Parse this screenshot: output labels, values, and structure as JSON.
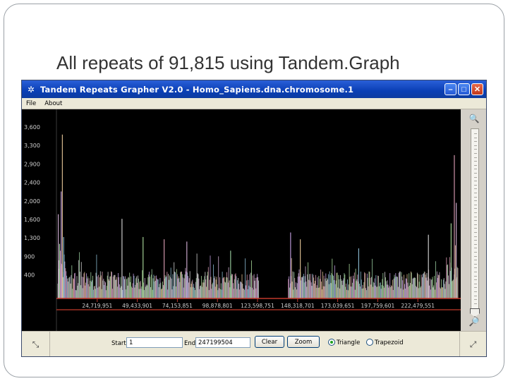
{
  "slide": {
    "title": "All repeats of 91,815 using Tandem.Graph"
  },
  "window": {
    "title": "Tandem Repeats Grapher V2.0 - Homo_Sapiens.dna.chromosome.1",
    "buttons": {
      "minimize": "–",
      "maximize": "□",
      "close": "✕"
    }
  },
  "menu": {
    "items": [
      "File",
      "About"
    ]
  },
  "icons": {
    "app": "star-icon",
    "zoom_in": "zoom-in-icon",
    "zoom_out": "zoom-out-icon",
    "left_tool": "resize-left-icon",
    "right_tool": "resize-right-icon"
  },
  "controls": {
    "start_label": "Start",
    "start_value": "1",
    "end_label": "End",
    "end_value": "247199504",
    "clear_label": "Clear",
    "zoom_label": "Zoom",
    "triangle_label": "Triangle",
    "trapezoid_label": "Trapezoid",
    "selected_shape": "Triangle"
  },
  "colors": {
    "plot_bg": "#000000",
    "axis": "#c0392b",
    "tick_labels": "#cfcfcf",
    "titlebar": "#0a3fb5"
  },
  "chart_data": {
    "type": "bar",
    "title": "",
    "xlabel": "",
    "ylabel": "",
    "y_ticks": [
      "3,600",
      "3,300",
      "2,900",
      "2,400",
      "2,000",
      "1,600",
      "1,300",
      "900",
      "400"
    ],
    "x_ticks": [
      24719951,
      49433901,
      74153851,
      98878801,
      123598751,
      148318701,
      173039651,
      197759601,
      222479551
    ],
    "x_tick_labels": [
      "24,719,951",
      "49,433,901",
      "74,153,851",
      "98,878,801",
      "123,598,751",
      "148,318,701",
      "173,039,651",
      "197,759,601",
      "222,479,551"
    ],
    "ylim": [
      0,
      4000
    ],
    "xlim": [
      1,
      247199504
    ],
    "gap": [
      124500000,
      142600000
    ],
    "series_colors": [
      "#d7b3d9",
      "#9fd3a4",
      "#c9a3e8",
      "#e8c89a",
      "#8fc0d8",
      "#d9d9d9",
      "#b0e0a0",
      "#e0a0b8"
    ],
    "peaks": [
      {
        "x": 700000,
        "y": 1850
      },
      {
        "x": 1500000,
        "y": 1200
      },
      {
        "x": 2500000,
        "y": 2350
      },
      {
        "x": 3200000,
        "y": 3600
      },
      {
        "x": 4000000,
        "y": 1350
      },
      {
        "x": 40000000,
        "y": 1750
      },
      {
        "x": 53000000,
        "y": 1350
      },
      {
        "x": 66000000,
        "y": 1300
      },
      {
        "x": 80000000,
        "y": 1250
      },
      {
        "x": 107000000,
        "y": 1050
      },
      {
        "x": 144000000,
        "y": 1450
      },
      {
        "x": 150000000,
        "y": 1300
      },
      {
        "x": 186000000,
        "y": 1100
      },
      {
        "x": 229000000,
        "y": 1400
      },
      {
        "x": 243000000,
        "y": 1650
      },
      {
        "x": 245000000,
        "y": 3150
      },
      {
        "x": 246200000,
        "y": 2100
      }
    ]
  }
}
